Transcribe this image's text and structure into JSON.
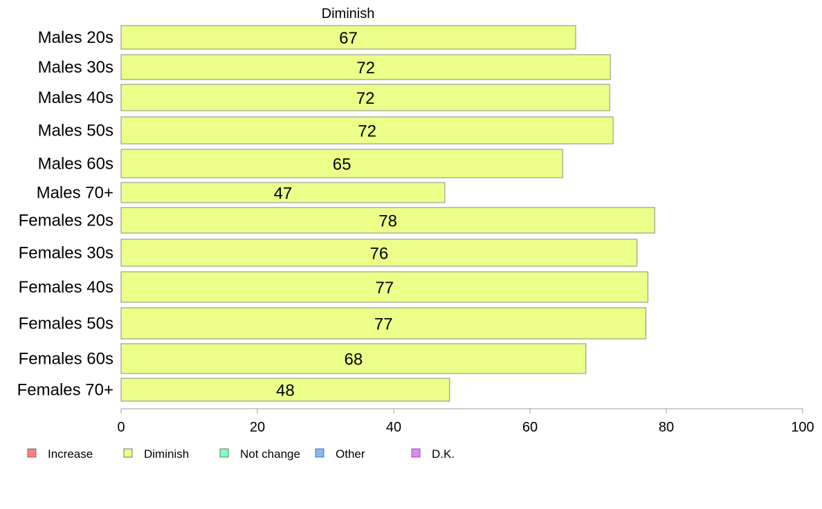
{
  "chart_data": {
    "type": "bar",
    "orientation": "horizontal",
    "title": "Diminish",
    "categories": [
      "Males 20s",
      "Males 30s",
      "Males 40s",
      "Males 50s",
      "Males 60s",
      "Males 70+",
      "Females 20s",
      "Females 30s",
      "Females 40s",
      "Females 50s",
      "Females 60s",
      "Females 70+"
    ],
    "series": [
      {
        "name": "Diminish",
        "values": [
          66.7,
          71.8,
          71.7,
          72.2,
          64.8,
          47.5,
          78.3,
          75.7,
          77.3,
          77.0,
          68.2,
          48.2
        ],
        "labels": [
          "67",
          "72",
          "72",
          "72",
          "65",
          "47",
          "78",
          "76",
          "77",
          "77",
          "68",
          "48"
        ]
      }
    ],
    "xlim": [
      0,
      100
    ],
    "xticks": [
      0,
      20,
      40,
      60,
      80,
      100
    ],
    "xtick_labels": [
      "0",
      "20",
      "40",
      "60",
      "80",
      "100"
    ],
    "grid": false,
    "legend_position": "bottom-left",
    "legend": [
      {
        "label": "Increase",
        "color": "#ff8080"
      },
      {
        "label": "Diminish",
        "color": "#ecff88"
      },
      {
        "label": "Not change",
        "color": "#80ffc0"
      },
      {
        "label": "Other",
        "color": "#80b8ff"
      },
      {
        "label": "D.K.",
        "color": "#e880ff"
      }
    ],
    "colors": {
      "bar_fill": "#ecff88",
      "bar_stroke": "#8a8a8a",
      "axis": "#9a9a9a"
    }
  }
}
